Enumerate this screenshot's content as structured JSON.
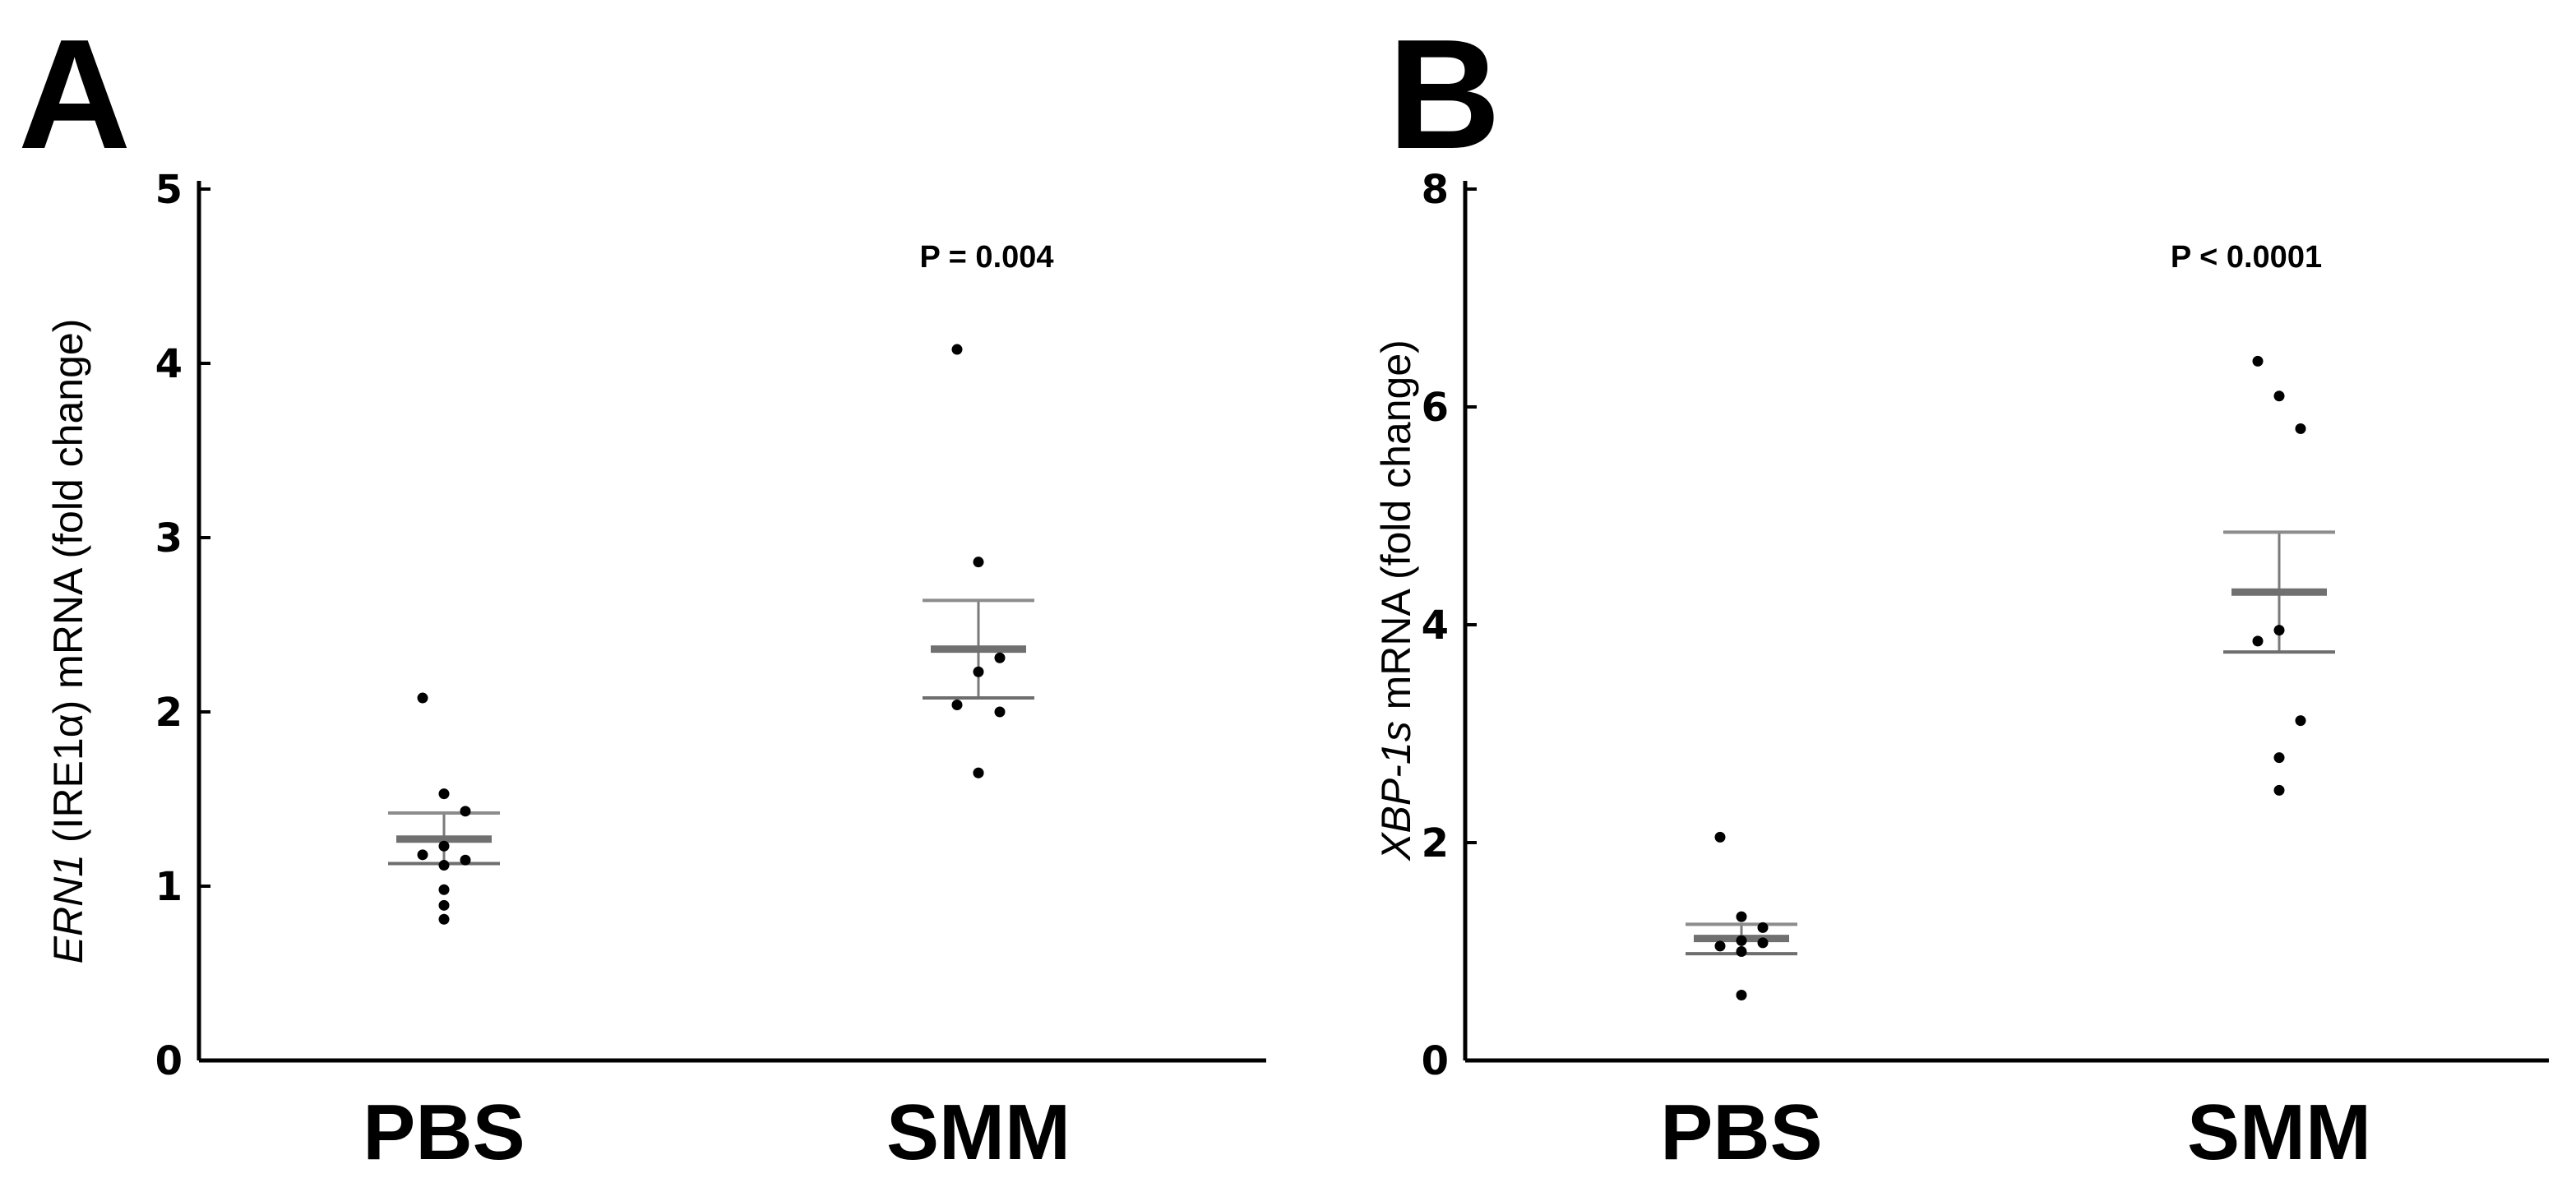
{
  "chart_data": [
    {
      "type": "scatter",
      "panel_label": "A",
      "ylabel_italic": "ERN1",
      "ylabel_rest": " (IRE1α) mRNA (fold change)",
      "categories": [
        "PBS",
        "SMM"
      ],
      "ylim": [
        0,
        5
      ],
      "yticks": [
        "0",
        "1",
        "2",
        "3",
        "4",
        "5"
      ],
      "annotation": "P = 0.004",
      "points": [
        [
          2.08,
          1.53,
          1.43,
          1.23,
          1.18,
          1.15,
          1.12,
          0.98,
          0.89,
          0.81
        ],
        [
          4.08,
          2.86,
          2.31,
          2.23,
          2.04,
          2.0,
          1.65,
          1.65
        ]
      ],
      "mean": [
        1.27,
        2.36
      ],
      "sem_upper": [
        1.42,
        2.64
      ],
      "sem_lower": [
        1.13,
        2.08
      ]
    },
    {
      "type": "scatter",
      "panel_label": "B",
      "ylabel_italic": "XBP-1s",
      "ylabel_rest": " mRNA (fold change)",
      "categories": [
        "PBS",
        "SMM"
      ],
      "ylim": [
        0,
        8
      ],
      "yticks": [
        "0",
        "2",
        "4",
        "6",
        "8"
      ],
      "annotation": "P < 0.0001",
      "points": [
        [
          2.05,
          1.32,
          1.22,
          1.1,
          1.05,
          1.08,
          1.0,
          0.6
        ],
        [
          6.42,
          6.1,
          5.8,
          3.95,
          3.85,
          3.12,
          2.78,
          2.48
        ]
      ],
      "mean": [
        1.12,
        4.3
      ],
      "sem_upper": [
        1.25,
        4.85
      ],
      "sem_lower": [
        0.98,
        3.75
      ]
    }
  ]
}
